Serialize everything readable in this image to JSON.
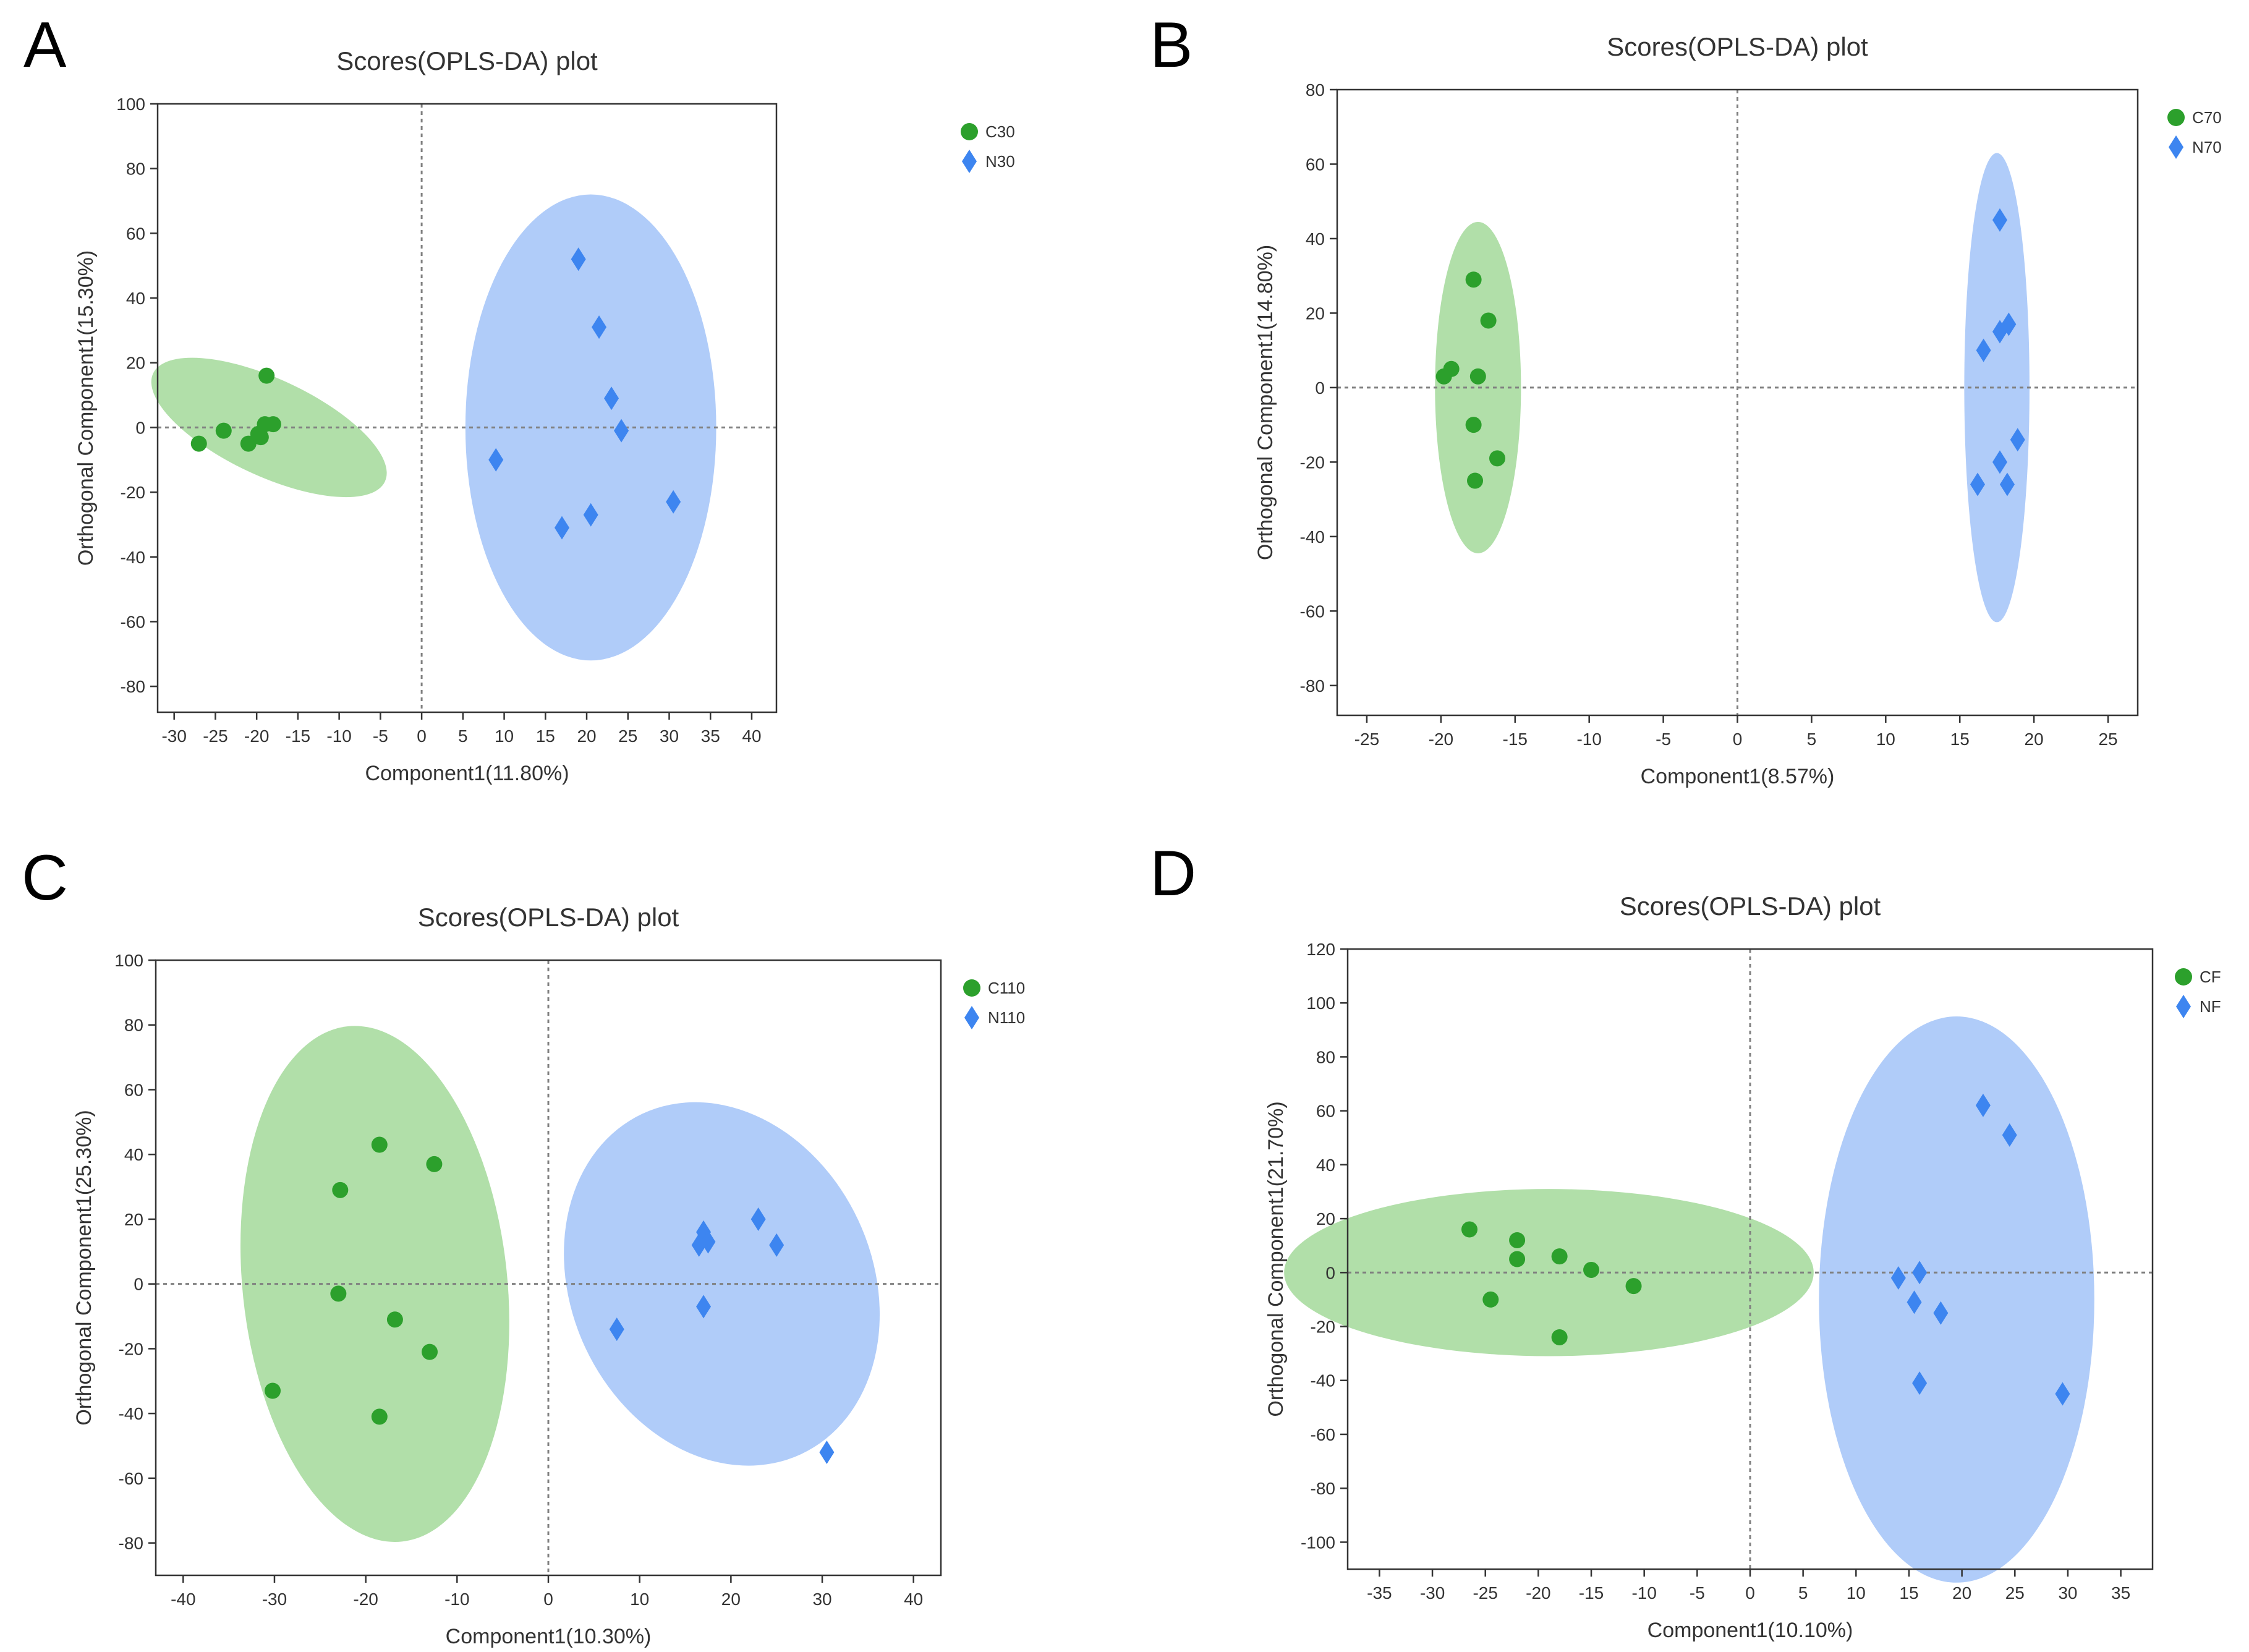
{
  "colors": {
    "group1": "#2ca02c",
    "group1_fill": "#a8dba0",
    "group2": "#3d85f0",
    "group2_fill": "#a7c7f8",
    "axis": "#333333",
    "refline": "#808080"
  },
  "chart_data": [
    {
      "panel": "A",
      "type": "scatter",
      "title": "Scores(OPLS-DA) plot",
      "xlabel": "Component1(11.80%)",
      "ylabel": "Orthogonal Component1(15.30%)",
      "xlim": [
        -32,
        43
      ],
      "ylim": [
        -88,
        100
      ],
      "xticks": [
        -30,
        -25,
        -20,
        -15,
        -10,
        -5,
        0,
        5,
        10,
        15,
        20,
        25,
        30,
        35,
        40
      ],
      "yticks": [
        -80,
        -60,
        -40,
        -20,
        0,
        20,
        40,
        60,
        80,
        100
      ],
      "legend_position": "top-right",
      "series": [
        {
          "name": "C30",
          "marker": "circle",
          "points": [
            [
              -27,
              -5
            ],
            [
              -24,
              -1
            ],
            [
              -21,
              -5
            ],
            [
              -19.5,
              -3
            ],
            [
              -19,
              1
            ],
            [
              -18.8,
              16
            ],
            [
              -18,
              1
            ],
            [
              -19.8,
              -2
            ]
          ],
          "ellipse": {
            "cx": -18.5,
            "cy": 0,
            "rx": 15.5,
            "ry": 15,
            "angle": 25
          }
        },
        {
          "name": "N30",
          "marker": "diamond",
          "points": [
            [
              19,
              52
            ],
            [
              21.5,
              31
            ],
            [
              23,
              9
            ],
            [
              24.2,
              -1
            ],
            [
              9,
              -10
            ],
            [
              17,
              -31
            ],
            [
              20.5,
              -27
            ],
            [
              30.5,
              -23
            ]
          ],
          "ellipse": {
            "cx": 20.5,
            "cy": 0,
            "rx": 15.2,
            "ry": 72,
            "angle": 0
          }
        }
      ]
    },
    {
      "panel": "B",
      "type": "scatter",
      "title": "Scores(OPLS-DA) plot",
      "xlabel": "Component1(8.57%)",
      "ylabel": "Orthogonal Component1(14.80%)",
      "xlim": [
        -27,
        27
      ],
      "ylim": [
        -88,
        80
      ],
      "xticks": [
        -25,
        -20,
        -15,
        -10,
        -5,
        0,
        5,
        10,
        15,
        20,
        25
      ],
      "yticks": [
        -80,
        -60,
        -40,
        -20,
        0,
        20,
        40,
        60,
        80
      ],
      "legend_position": "top-right",
      "series": [
        {
          "name": "C70",
          "marker": "circle",
          "points": [
            [
              -17.8,
              29
            ],
            [
              -16.8,
              18
            ],
            [
              -19.3,
              5
            ],
            [
              -19.8,
              3
            ],
            [
              -17.5,
              3
            ],
            [
              -17.8,
              -10
            ],
            [
              -16.2,
              -19
            ],
            [
              -17.7,
              -25
            ]
          ],
          "ellipse": {
            "cx": -17.5,
            "cy": 0,
            "rx": 2.9,
            "ry": 44.5,
            "angle": 0
          }
        },
        {
          "name": "N70",
          "marker": "diamond",
          "points": [
            [
              17.7,
              45
            ],
            [
              18.3,
              17
            ],
            [
              17.7,
              15
            ],
            [
              16.6,
              10
            ],
            [
              18.9,
              -14
            ],
            [
              17.7,
              -20
            ],
            [
              16.2,
              -26
            ],
            [
              18.2,
              -26
            ]
          ],
          "ellipse": {
            "cx": 17.5,
            "cy": 0,
            "rx": 2.2,
            "ry": 63,
            "angle": 0
          }
        }
      ]
    },
    {
      "panel": "C",
      "type": "scatter",
      "title": "Scores(OPLS-DA) plot",
      "xlabel": "Component1(10.30%)",
      "ylabel": "Orthogonal Component1(25.30%)",
      "xlim": [
        -43,
        43
      ],
      "ylim": [
        -90,
        100
      ],
      "xticks": [
        -40,
        -30,
        -20,
        -10,
        0,
        10,
        20,
        30,
        40
      ],
      "yticks": [
        -80,
        -60,
        -40,
        -20,
        0,
        20,
        40,
        60,
        80,
        100
      ],
      "legend_position": "top-right",
      "series": [
        {
          "name": "C110",
          "marker": "circle",
          "points": [
            [
              -18.5,
              43
            ],
            [
              -12.5,
              37
            ],
            [
              -22.8,
              29
            ],
            [
              -23,
              -3
            ],
            [
              -16.8,
              -11
            ],
            [
              -13,
              -21
            ],
            [
              -30.2,
              -33
            ],
            [
              -18.5,
              -41
            ]
          ],
          "ellipse": {
            "cx": -19,
            "cy": 0,
            "rx": 14.5,
            "ry": 80,
            "angle": -6
          }
        },
        {
          "name": "N110",
          "marker": "diamond",
          "points": [
            [
              17,
              16
            ],
            [
              17.5,
              13
            ],
            [
              16.5,
              12
            ],
            [
              23,
              20
            ],
            [
              25,
              12
            ],
            [
              17,
              -7
            ],
            [
              7.5,
              -14
            ],
            [
              30.5,
              -52
            ]
          ],
          "ellipse": {
            "cx": 19,
            "cy": 0,
            "rx": 16.5,
            "ry": 58,
            "angle": -25
          }
        }
      ]
    },
    {
      "panel": "D",
      "type": "scatter",
      "title": "Scores(OPLS-DA) plot",
      "xlabel": "Component1(10.10%)",
      "ylabel": "Orthogonal Component1(21.70%)",
      "xlim": [
        -38,
        38
      ],
      "ylim": [
        -110,
        120
      ],
      "xticks": [
        -35,
        -30,
        -25,
        -20,
        -15,
        -10,
        -5,
        0,
        5,
        10,
        15,
        20,
        25,
        30,
        35
      ],
      "yticks": [
        -100,
        -80,
        -60,
        -40,
        -20,
        0,
        20,
        40,
        60,
        80,
        100,
        120
      ],
      "legend_position": "top-right",
      "series": [
        {
          "name": "CF",
          "marker": "circle",
          "points": [
            [
              -26.5,
              16
            ],
            [
              -22,
              12
            ],
            [
              -22,
              5
            ],
            [
              -18,
              6
            ],
            [
              -15,
              1
            ],
            [
              -11,
              -5
            ],
            [
              -24.5,
              -10
            ],
            [
              -18,
              -24
            ]
          ],
          "ellipse": {
            "cx": -19,
            "cy": 0,
            "rx": 25,
            "ry": 31,
            "angle": 0
          }
        },
        {
          "name": "NF",
          "marker": "diamond",
          "points": [
            [
              22,
              62
            ],
            [
              24.5,
              51
            ],
            [
              14,
              -2
            ],
            [
              16,
              0
            ],
            [
              15.5,
              -11
            ],
            [
              18,
              -15
            ],
            [
              16,
              -41
            ],
            [
              29.5,
              -45
            ]
          ],
          "ellipse": {
            "cx": 19.5,
            "cy": -10,
            "rx": 13,
            "ry": 105,
            "angle": 0
          }
        }
      ]
    }
  ]
}
